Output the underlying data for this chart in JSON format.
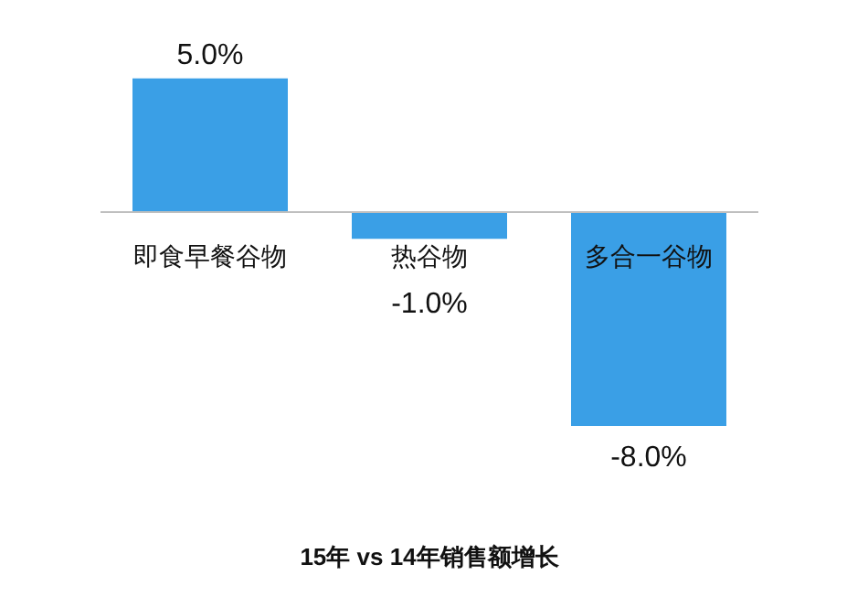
{
  "chart_data": {
    "type": "bar",
    "title": "15年 vs 14年销售额增长",
    "categories": [
      "即食早餐谷物",
      "热谷物",
      "多合一谷物"
    ],
    "values": [
      5.0,
      -1.0,
      -8.0
    ],
    "value_labels": [
      "5.0%",
      "-1.0%",
      "-8.0%"
    ],
    "color": "#3a9fe6"
  }
}
